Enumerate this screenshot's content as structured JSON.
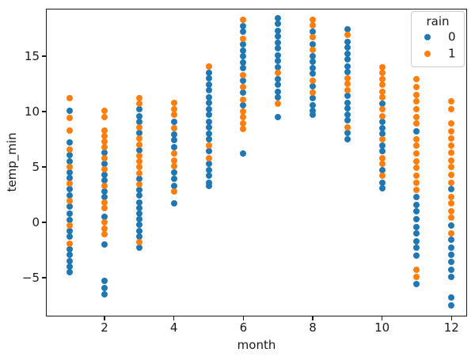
{
  "chart_data": {
    "type": "scatter",
    "title": "",
    "xlabel": "month",
    "ylabel": "temp_min",
    "xlim": [
      0.31,
      12.45
    ],
    "ylim": [
      -8.5,
      19.29
    ],
    "x_ticks": [
      2,
      4,
      6,
      8,
      10,
      12
    ],
    "y_ticks": [
      -5,
      0,
      5,
      10,
      15
    ],
    "grid": false,
    "marker_diameter_px": 8,
    "legend": {
      "title": "rain",
      "position": "upper right",
      "entries": [
        {
          "label": "0",
          "color": "#1f77b4"
        },
        {
          "label": "1",
          "color": "#ff7f0e"
        }
      ]
    },
    "series": [
      {
        "name": "0",
        "color": "#1f77b4",
        "points": [
          [
            1,
            10.1
          ],
          [
            1,
            7.2
          ],
          [
            1,
            6.1
          ],
          [
            1,
            5.5
          ],
          [
            1,
            4.5
          ],
          [
            1,
            4.0
          ],
          [
            1,
            3.0
          ],
          [
            1,
            2.4
          ],
          [
            1,
            1.4
          ],
          [
            1,
            0.8
          ],
          [
            1,
            0.2
          ],
          [
            1,
            -0.8
          ],
          [
            1,
            -1.3
          ],
          [
            1,
            -2.4
          ],
          [
            1,
            -2.9
          ],
          [
            1,
            -3.5
          ],
          [
            1,
            -4.0
          ],
          [
            1,
            -4.5
          ],
          [
            2,
            6.3
          ],
          [
            2,
            5.3
          ],
          [
            2,
            4.3
          ],
          [
            2,
            3.8
          ],
          [
            2,
            2.8
          ],
          [
            2,
            2.3
          ],
          [
            2,
            0.5
          ],
          [
            2,
            -2.0
          ],
          [
            2,
            -5.3
          ],
          [
            2,
            -5.9
          ],
          [
            2,
            -6.5
          ],
          [
            3,
            10.2
          ],
          [
            3,
            9.6
          ],
          [
            3,
            9.1
          ],
          [
            3,
            8.1
          ],
          [
            3,
            6.5
          ],
          [
            3,
            3.9
          ],
          [
            3,
            2.9
          ],
          [
            3,
            2.4
          ],
          [
            3,
            1.8
          ],
          [
            3,
            1.3
          ],
          [
            3,
            0.8
          ],
          [
            3,
            0.3
          ],
          [
            3,
            -0.2
          ],
          [
            3,
            -0.8
          ],
          [
            3,
            -1.3
          ],
          [
            3,
            -2.3
          ],
          [
            4,
            9.1
          ],
          [
            4,
            7.9
          ],
          [
            4,
            7.4
          ],
          [
            4,
            6.8
          ],
          [
            4,
            4.5
          ],
          [
            4,
            3.9
          ],
          [
            4,
            3.3
          ],
          [
            4,
            1.7
          ],
          [
            5,
            13.5
          ],
          [
            5,
            13.0
          ],
          [
            5,
            12.4
          ],
          [
            5,
            11.9
          ],
          [
            5,
            11.3
          ],
          [
            5,
            10.8
          ],
          [
            5,
            10.2
          ],
          [
            5,
            9.7
          ],
          [
            5,
            9.1
          ],
          [
            5,
            8.6
          ],
          [
            5,
            8.0
          ],
          [
            5,
            7.5
          ],
          [
            5,
            6.4
          ],
          [
            5,
            5.3
          ],
          [
            5,
            4.7
          ],
          [
            5,
            4.2
          ],
          [
            5,
            3.6
          ],
          [
            5,
            3.3
          ],
          [
            6,
            17.7
          ],
          [
            6,
            17.2
          ],
          [
            6,
            16.1
          ],
          [
            6,
            15.5
          ],
          [
            6,
            15.0
          ],
          [
            6,
            14.4
          ],
          [
            6,
            13.9
          ],
          [
            6,
            12.8
          ],
          [
            6,
            11.7
          ],
          [
            6,
            10.6
          ],
          [
            6,
            6.2
          ],
          [
            7,
            18.4
          ],
          [
            7,
            17.9
          ],
          [
            7,
            17.3
          ],
          [
            7,
            16.8
          ],
          [
            7,
            16.2
          ],
          [
            7,
            15.7
          ],
          [
            7,
            15.1
          ],
          [
            7,
            14.6
          ],
          [
            7,
            14.0
          ],
          [
            7,
            12.9
          ],
          [
            7,
            12.4
          ],
          [
            7,
            11.8
          ],
          [
            7,
            11.3
          ],
          [
            7,
            9.5
          ],
          [
            8,
            17.2
          ],
          [
            8,
            16.1
          ],
          [
            8,
            15.0
          ],
          [
            8,
            14.5
          ],
          [
            8,
            13.9
          ],
          [
            8,
            13.4
          ],
          [
            8,
            12.3
          ],
          [
            8,
            11.2
          ],
          [
            8,
            10.6
          ],
          [
            8,
            10.1
          ],
          [
            8,
            9.7
          ],
          [
            9,
            17.4
          ],
          [
            9,
            16.3
          ],
          [
            9,
            15.8
          ],
          [
            9,
            15.2
          ],
          [
            9,
            14.7
          ],
          [
            9,
            14.1
          ],
          [
            9,
            13.6
          ],
          [
            9,
            11.4
          ],
          [
            9,
            10.8
          ],
          [
            9,
            10.3
          ],
          [
            9,
            9.7
          ],
          [
            9,
            9.2
          ],
          [
            9,
            8.1
          ],
          [
            9,
            7.5
          ],
          [
            10,
            10.7
          ],
          [
            10,
            9.1
          ],
          [
            10,
            8.5
          ],
          [
            10,
            8.0
          ],
          [
            10,
            6.9
          ],
          [
            10,
            6.4
          ],
          [
            10,
            4.7
          ],
          [
            10,
            3.6
          ],
          [
            10,
            3.1
          ],
          [
            11,
            8.2
          ],
          [
            11,
            2.3
          ],
          [
            11,
            1.6
          ],
          [
            11,
            1.0
          ],
          [
            11,
            0.3
          ],
          [
            11,
            -0.4
          ],
          [
            11,
            -1.0
          ],
          [
            11,
            -1.7
          ],
          [
            11,
            -2.3
          ],
          [
            11,
            -3.0
          ],
          [
            11,
            -5.6
          ],
          [
            12,
            3.0
          ],
          [
            12,
            -0.3
          ],
          [
            12,
            -1.6
          ],
          [
            12,
            -2.3
          ],
          [
            12,
            -2.9
          ],
          [
            12,
            -3.6
          ],
          [
            12,
            -4.3
          ],
          [
            12,
            -4.9
          ],
          [
            12,
            -6.8
          ],
          [
            12,
            -7.5
          ]
        ]
      },
      {
        "name": "1",
        "color": "#ff7f0e",
        "points": [
          [
            1,
            11.2
          ],
          [
            1,
            9.4
          ],
          [
            1,
            8.3
          ],
          [
            1,
            6.6
          ],
          [
            1,
            5.0
          ],
          [
            1,
            3.5
          ],
          [
            1,
            1.9
          ],
          [
            1,
            -0.3
          ],
          [
            1,
            -1.9
          ],
          [
            2,
            10.1
          ],
          [
            2,
            9.5
          ],
          [
            2,
            8.3
          ],
          [
            2,
            7.8
          ],
          [
            2,
            7.3
          ],
          [
            2,
            6.8
          ],
          [
            2,
            5.8
          ],
          [
            2,
            4.8
          ],
          [
            2,
            3.3
          ],
          [
            2,
            1.8
          ],
          [
            2,
            1.3
          ],
          [
            2,
            0.0
          ],
          [
            2,
            -0.6
          ],
          [
            2,
            -1.1
          ],
          [
            3,
            11.2
          ],
          [
            3,
            10.7
          ],
          [
            3,
            8.6
          ],
          [
            3,
            7.6
          ],
          [
            3,
            7.0
          ],
          [
            3,
            6.0
          ],
          [
            3,
            5.5
          ],
          [
            3,
            5.0
          ],
          [
            3,
            4.4
          ],
          [
            3,
            3.4
          ],
          [
            3,
            -1.8
          ],
          [
            4,
            10.8
          ],
          [
            4,
            10.2
          ],
          [
            4,
            9.7
          ],
          [
            4,
            8.5
          ],
          [
            4,
            6.2
          ],
          [
            4,
            5.6
          ],
          [
            4,
            5.1
          ],
          [
            4,
            2.8
          ],
          [
            5,
            14.1
          ],
          [
            5,
            6.9
          ],
          [
            5,
            5.8
          ],
          [
            6,
            18.3
          ],
          [
            6,
            16.6
          ],
          [
            6,
            13.3
          ],
          [
            6,
            12.2
          ],
          [
            6,
            11.1
          ],
          [
            6,
            10.0
          ],
          [
            6,
            9.5
          ],
          [
            6,
            8.9
          ],
          [
            6,
            8.4
          ],
          [
            7,
            13.5
          ],
          [
            7,
            10.7
          ],
          [
            8,
            18.3
          ],
          [
            8,
            17.8
          ],
          [
            8,
            16.7
          ],
          [
            8,
            15.6
          ],
          [
            8,
            12.8
          ],
          [
            8,
            11.7
          ],
          [
            9,
            16.9
          ],
          [
            9,
            13.0
          ],
          [
            9,
            12.5
          ],
          [
            9,
            11.9
          ],
          [
            9,
            8.6
          ],
          [
            10,
            14.0
          ],
          [
            10,
            13.5
          ],
          [
            10,
            12.9
          ],
          [
            10,
            12.4
          ],
          [
            10,
            11.8
          ],
          [
            10,
            11.3
          ],
          [
            10,
            10.2
          ],
          [
            10,
            9.6
          ],
          [
            10,
            7.5
          ],
          [
            10,
            5.8
          ],
          [
            10,
            5.3
          ],
          [
            10,
            4.2
          ],
          [
            11,
            12.9
          ],
          [
            11,
            12.2
          ],
          [
            11,
            11.5
          ],
          [
            11,
            10.9
          ],
          [
            11,
            10.2
          ],
          [
            11,
            9.5
          ],
          [
            11,
            8.9
          ],
          [
            11,
            7.5
          ],
          [
            11,
            6.9
          ],
          [
            11,
            6.2
          ],
          [
            11,
            5.5
          ],
          [
            11,
            4.9
          ],
          [
            11,
            4.2
          ],
          [
            11,
            3.6
          ],
          [
            11,
            2.9
          ],
          [
            11,
            -4.3
          ],
          [
            11,
            -4.9
          ],
          [
            12,
            10.9
          ],
          [
            12,
            10.2
          ],
          [
            12,
            8.9
          ],
          [
            12,
            8.2
          ],
          [
            12,
            7.6
          ],
          [
            12,
            6.9
          ],
          [
            12,
            6.3
          ],
          [
            12,
            5.6
          ],
          [
            12,
            5.0
          ],
          [
            12,
            4.3
          ],
          [
            12,
            3.6
          ],
          [
            12,
            2.3
          ],
          [
            12,
            1.7
          ],
          [
            12,
            1.0
          ],
          [
            12,
            0.4
          ],
          [
            12,
            -1.0
          ]
        ]
      }
    ]
  }
}
